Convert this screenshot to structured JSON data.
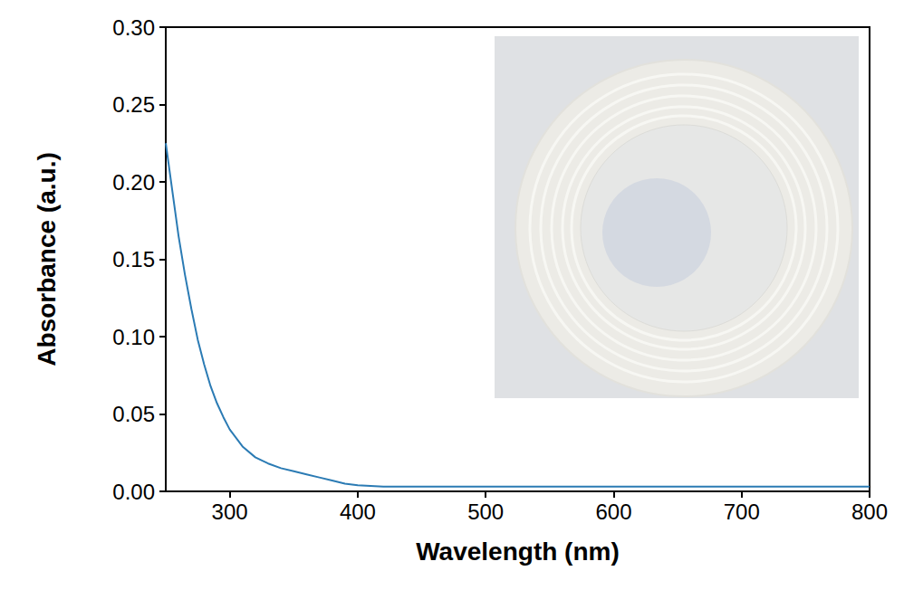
{
  "chart_data": {
    "type": "line",
    "x_label": "Wavelength (nm)",
    "y_label": "Absorbance (a.u.)",
    "x": [
      250,
      255,
      260,
      265,
      270,
      275,
      280,
      285,
      290,
      295,
      300,
      310,
      320,
      330,
      340,
      350,
      360,
      370,
      380,
      390,
      400,
      420,
      450,
      500,
      550,
      600,
      650,
      700,
      750,
      800
    ],
    "values": [
      0.225,
      0.195,
      0.165,
      0.14,
      0.118,
      0.098,
      0.082,
      0.068,
      0.057,
      0.048,
      0.04,
      0.029,
      0.022,
      0.018,
      0.015,
      0.013,
      0.011,
      0.009,
      0.007,
      0.005,
      0.004,
      0.003,
      0.003,
      0.003,
      0.003,
      0.003,
      0.003,
      0.003,
      0.003,
      0.003
    ],
    "color": "#2b7bb4",
    "marker": "none",
    "line_style": "solid",
    "xlim": [
      250,
      800
    ],
    "xticks": [
      300,
      400,
      500,
      600,
      700,
      800
    ],
    "ylim": [
      0,
      0.3
    ],
    "yticks": [
      {
        "value": 0,
        "label": "0.00"
      },
      {
        "value": 0.05,
        "label": "0.05"
      },
      {
        "value": 0.1,
        "label": "0.10"
      },
      {
        "value": 0.15,
        "label": "0.15"
      },
      {
        "value": 0.2,
        "label": "0.20"
      },
      {
        "value": 0.25,
        "label": "0.25"
      },
      {
        "value": 0.3,
        "label": "0.30"
      }
    ],
    "grid": false
  }
}
